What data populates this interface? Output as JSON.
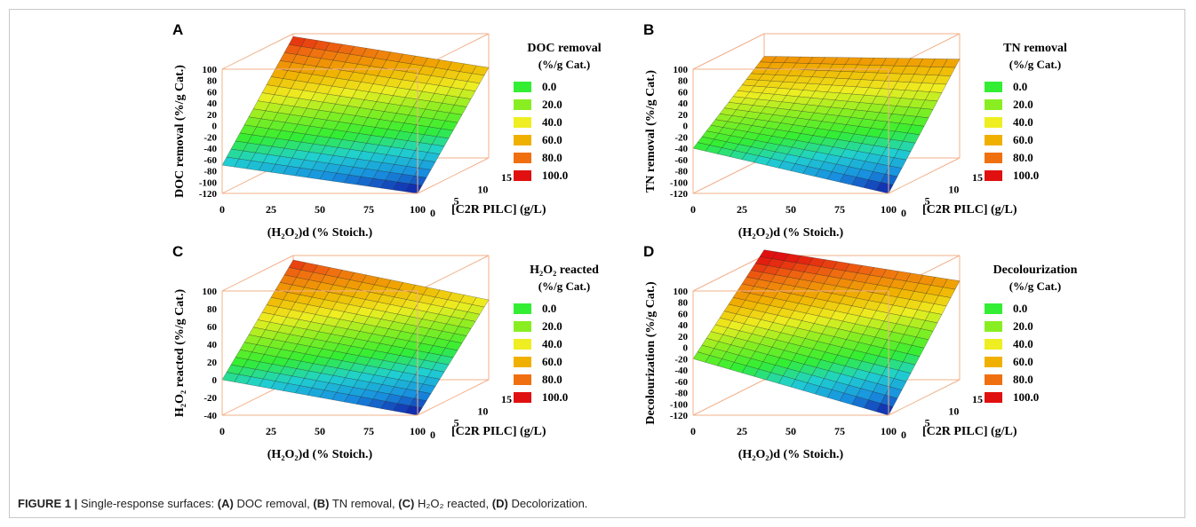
{
  "figure": {
    "caption_label": "FIGURE 1 |",
    "caption_intro": "Single-response surfaces:",
    "caption_parts": [
      {
        "key": "(A)",
        "text": "DOC removal,"
      },
      {
        "key": "(B)",
        "text": "TN removal,"
      },
      {
        "key": "(C)",
        "text": "H₂O₂ reacted,"
      },
      {
        "key": "(D)",
        "text": "Decolorization."
      }
    ]
  },
  "legend_unit": "(%/g Cat.)",
  "legend_colors": [
    "#33ee33",
    "#88ee22",
    "#eeee22",
    "#f0b000",
    "#f07010",
    "#e01010"
  ],
  "chart_data": [
    {
      "type": "surface",
      "panel": "A",
      "legend_title": "DOC removal",
      "legend_levels": [
        "0.0",
        "20.0",
        "40.0",
        "60.0",
        "80.0",
        "100.0"
      ],
      "xlabel": "(H₂O₂)d (% Stoich.)",
      "ylabel": "[C2R PILC] (g/L)",
      "zlabel": "DOC removal (%/g Cat.)",
      "x_ticks": [
        "0",
        "25",
        "50",
        "75",
        "100"
      ],
      "y_ticks": [
        "0",
        "5",
        "10",
        "15"
      ],
      "z_ticks": [
        "100",
        "80",
        "60",
        "40",
        "20",
        "0",
        "-20",
        "-40",
        "-60",
        "-80",
        "-100",
        "-120"
      ],
      "z_range": [
        -120,
        100
      ],
      "surface_corners": {
        "x0_y15": 95,
        "x100_y15": 40,
        "x0_y0": -70,
        "x100_y0": -120
      }
    },
    {
      "type": "surface",
      "panel": "B",
      "legend_title": "TN removal",
      "legend_levels": [
        "0.0",
        "20.0",
        "40.0",
        "60.0",
        "80.0",
        "100.0"
      ],
      "xlabel": "(H₂O₂)d (% Stoich.)",
      "ylabel": "[C2R PILC] (g/L)",
      "zlabel": "TN removal (%/g Cat.)",
      "x_ticks": [
        "0",
        "25",
        "50",
        "75",
        "100"
      ],
      "y_ticks": [
        "0",
        "5",
        "10",
        "15"
      ],
      "z_ticks": [
        "100",
        "80",
        "60",
        "40",
        "20",
        "0",
        "-20",
        "-40",
        "-60",
        "-80",
        "-100",
        "-120"
      ],
      "z_range": [
        -120,
        100
      ],
      "surface_corners": {
        "x0_y15": 60,
        "x100_y15": 55,
        "x0_y0": -40,
        "x100_y0": -120
      }
    },
    {
      "type": "surface",
      "panel": "C",
      "legend_title": "H₂O₂ reacted",
      "legend_levels": [
        "0.0",
        "20.0",
        "40.0",
        "60.0",
        "80.0",
        "100.0"
      ],
      "xlabel": "(H₂O₂)d (% Stoich.)",
      "ylabel": "[C2R PILC] (g/L)",
      "zlabel": "H₂O₂ reacted (%/g Cat.)",
      "x_ticks": [
        "0",
        "25",
        "50",
        "75",
        "100"
      ],
      "y_ticks": [
        "0",
        "5",
        "10",
        "15"
      ],
      "z_ticks": [
        "100",
        "80",
        "60",
        "40",
        "20",
        "0",
        "-20",
        "-40"
      ],
      "z_range": [
        -40,
        100
      ],
      "surface_corners": {
        "x0_y15": 95,
        "x100_y15": 50,
        "x0_y0": 0,
        "x100_y0": -40
      }
    },
    {
      "type": "surface",
      "panel": "D",
      "legend_title": "Decolourization",
      "legend_levels": [
        "0.0",
        "20.0",
        "40.0",
        "60.0",
        "80.0",
        "100.0"
      ],
      "xlabel": "(H₂O₂)d (% Stoich.)",
      "ylabel": "[C2R PILC] (g/L)",
      "zlabel": "Decolourization (%/g Cat.)",
      "x_ticks": [
        "0",
        "25",
        "50",
        "75",
        "100"
      ],
      "y_ticks": [
        "0",
        "5",
        "10",
        "15"
      ],
      "z_ticks": [
        "100",
        "80",
        "60",
        "40",
        "20",
        "0",
        "-20",
        "-40",
        "-60",
        "-80",
        "-100",
        "-120"
      ],
      "z_range": [
        -120,
        100
      ],
      "surface_corners": {
        "x0_y15": 110,
        "x100_y15": 55,
        "x0_y0": -20,
        "x100_y0": -120
      }
    }
  ]
}
